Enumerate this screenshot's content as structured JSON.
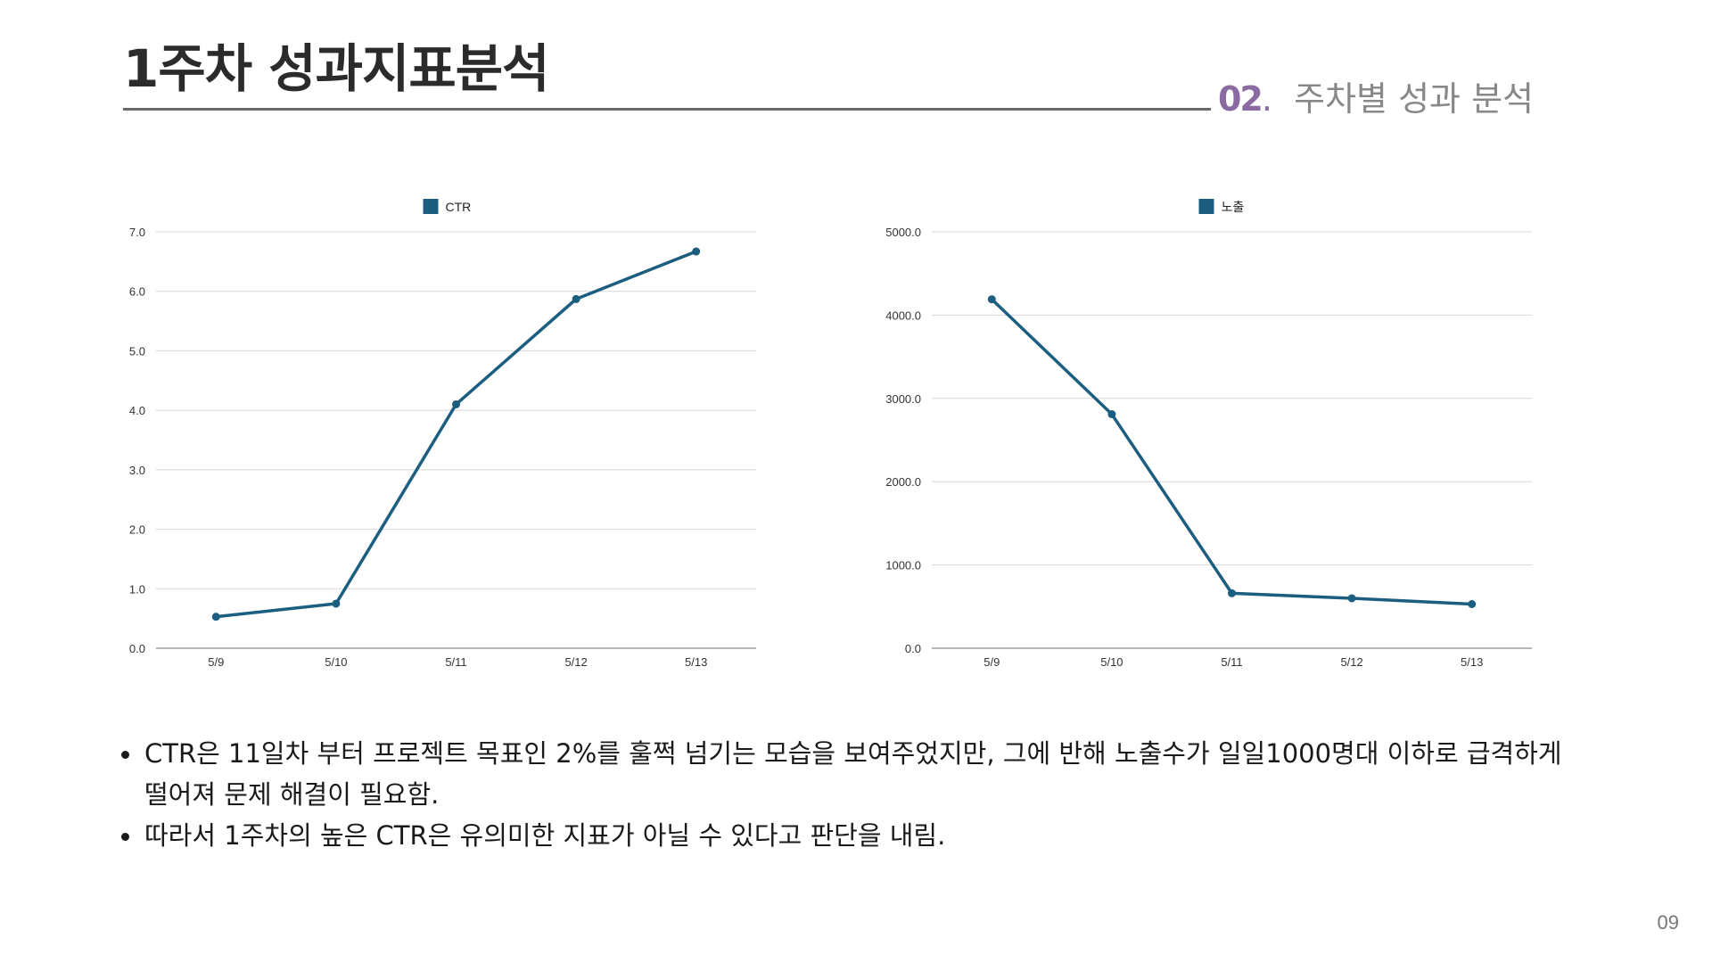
{
  "header": {
    "title": "1주차 성과지표분석",
    "section_number": "02",
    "section_dot": ".",
    "section_title": "주차별 성과 분석"
  },
  "chart_data": [
    {
      "type": "line",
      "title": "",
      "xlabel": "",
      "ylabel": "",
      "categories": [
        "5/9",
        "5/10",
        "5/11",
        "5/12",
        "5/13"
      ],
      "series": [
        {
          "name": "CTR",
          "values": [
            0.53,
            0.75,
            4.1,
            5.87,
            6.67
          ],
          "color": "#1b5e80"
        }
      ],
      "ylim": [
        0,
        7
      ],
      "yticks": [
        "0.0",
        "1.0",
        "2.0",
        "3.0",
        "4.0",
        "5.0",
        "6.0",
        "7.0"
      ],
      "legend": "top-center",
      "grid": true
    },
    {
      "type": "line",
      "title": "",
      "xlabel": "",
      "ylabel": "",
      "categories": [
        "5/9",
        "5/10",
        "5/11",
        "5/12",
        "5/13"
      ],
      "series": [
        {
          "name": "노출",
          "values": [
            4190,
            2810,
            660,
            600,
            530
          ],
          "color": "#1b5e80"
        }
      ],
      "ylim": [
        0,
        5000
      ],
      "yticks": [
        "0.0",
        "1000.0",
        "2000.0",
        "3000.0",
        "4000.0",
        "5000.0"
      ],
      "legend": "top-center",
      "grid": true
    }
  ],
  "bullets": [
    "CTR은 11일차 부터 프로젝트 목표인 2%를 훌쩍 넘기는 모습을 보여주었지만, 그에 반해 노출수가 일일1000명대 이하로 급격하게 떨어져 문제 해결이 필요함.",
    "따라서 1주차의 높은 CTR은 유의미한 지표가 아닐 수 있다고 판단을 내림."
  ],
  "page_number": "09"
}
